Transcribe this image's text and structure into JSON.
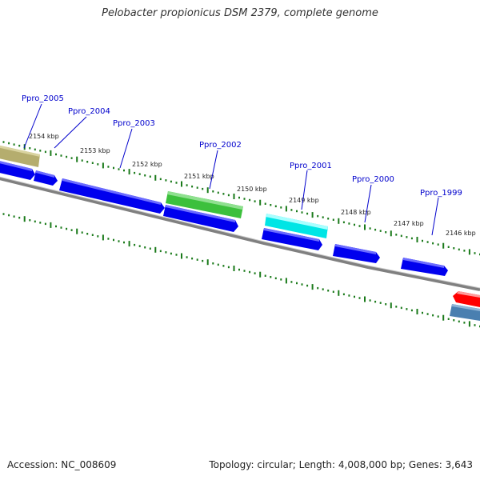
{
  "title": "Pelobacter propionicus DSM 2379, complete genome",
  "footer": {
    "accession": "Accession: NC_008609",
    "summary": "Topology: circular; Length: 4,008,000 bp; Genes: 3,643"
  },
  "colors": {
    "backbone": "#808080",
    "tick": "#1a7a1a",
    "label": "#0000cc",
    "leader": "#0000cc",
    "ruler_text": "#222222"
  },
  "ruler": [
    {
      "label": "2154 kbp"
    },
    {
      "label": "2153 kbp"
    },
    {
      "label": "2152 kbp"
    },
    {
      "label": "2151 kbp"
    },
    {
      "label": "2150 kbp"
    },
    {
      "label": "2149 kbp"
    },
    {
      "label": "2148 kbp"
    },
    {
      "label": "2147 kbp"
    },
    {
      "label": "2146 kbp"
    }
  ],
  "gene_labels": [
    {
      "name": "Ppro_2005"
    },
    {
      "name": "Ppro_2004"
    },
    {
      "name": "Ppro_2003"
    },
    {
      "name": "Ppro_2002"
    },
    {
      "name": "Ppro_2001"
    },
    {
      "name": "Ppro_2000"
    },
    {
      "name": "Ppro_1999"
    }
  ],
  "features": [
    {
      "color": "#b5ad6e"
    },
    {
      "color": "#3cc03c"
    },
    {
      "color": "#00e5e5"
    },
    {
      "color": "#ff0000"
    },
    {
      "color": "#4a7fb0"
    },
    {
      "color": "#0000ee"
    }
  ]
}
